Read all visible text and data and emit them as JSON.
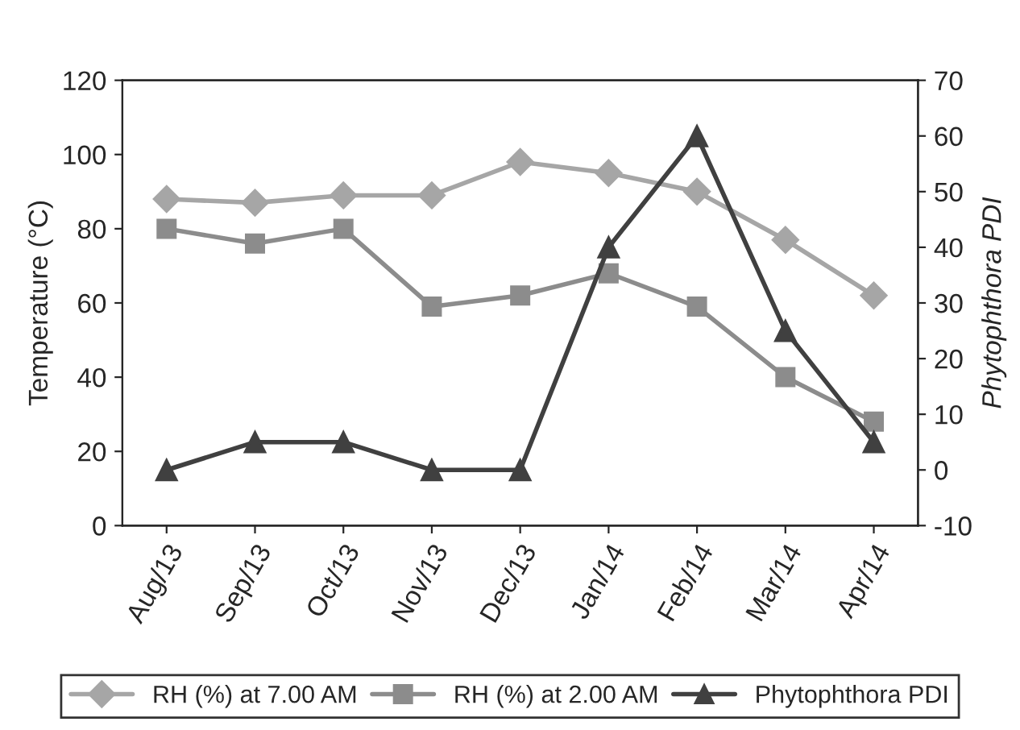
{
  "chart_data": {
    "type": "line",
    "ylabel": "Temperature (°C)",
    "y2label": "Phytophthora PDI",
    "categories": [
      "Aug/13",
      "Sep/13",
      "Oct/13",
      "Nov/13",
      "Dec/13",
      "Jan/14",
      "Feb/14",
      "Mar/14",
      "Apr/14"
    ],
    "series": [
      {
        "name": "RH (%) at 7.00 AM",
        "color": "#a6a6a6",
        "marker": "diamond",
        "values": [
          88,
          87,
          89,
          89,
          98,
          95,
          90,
          77,
          62
        ]
      },
      {
        "name": "RH (%) at 2.00 AM",
        "color": "#8c8c8c",
        "marker": "square",
        "values": [
          80,
          76,
          80,
          59,
          62,
          68,
          59,
          40,
          28
        ]
      },
      {
        "name": "Phytophthora PDI",
        "color": "#404040",
        "marker": "triangle",
        "axis": "y2",
        "values": [
          0,
          5,
          5,
          0,
          0,
          40,
          60,
          25,
          5
        ]
      }
    ],
    "ylim": [
      0,
      120
    ],
    "yticks": [
      0,
      20,
      40,
      60,
      80,
      100,
      120
    ],
    "y2lim": [
      -10,
      70
    ],
    "y2ticks": [
      -10,
      0,
      10,
      20,
      30,
      40,
      50,
      60,
      70
    ],
    "grid": false,
    "legend": "bottom"
  }
}
